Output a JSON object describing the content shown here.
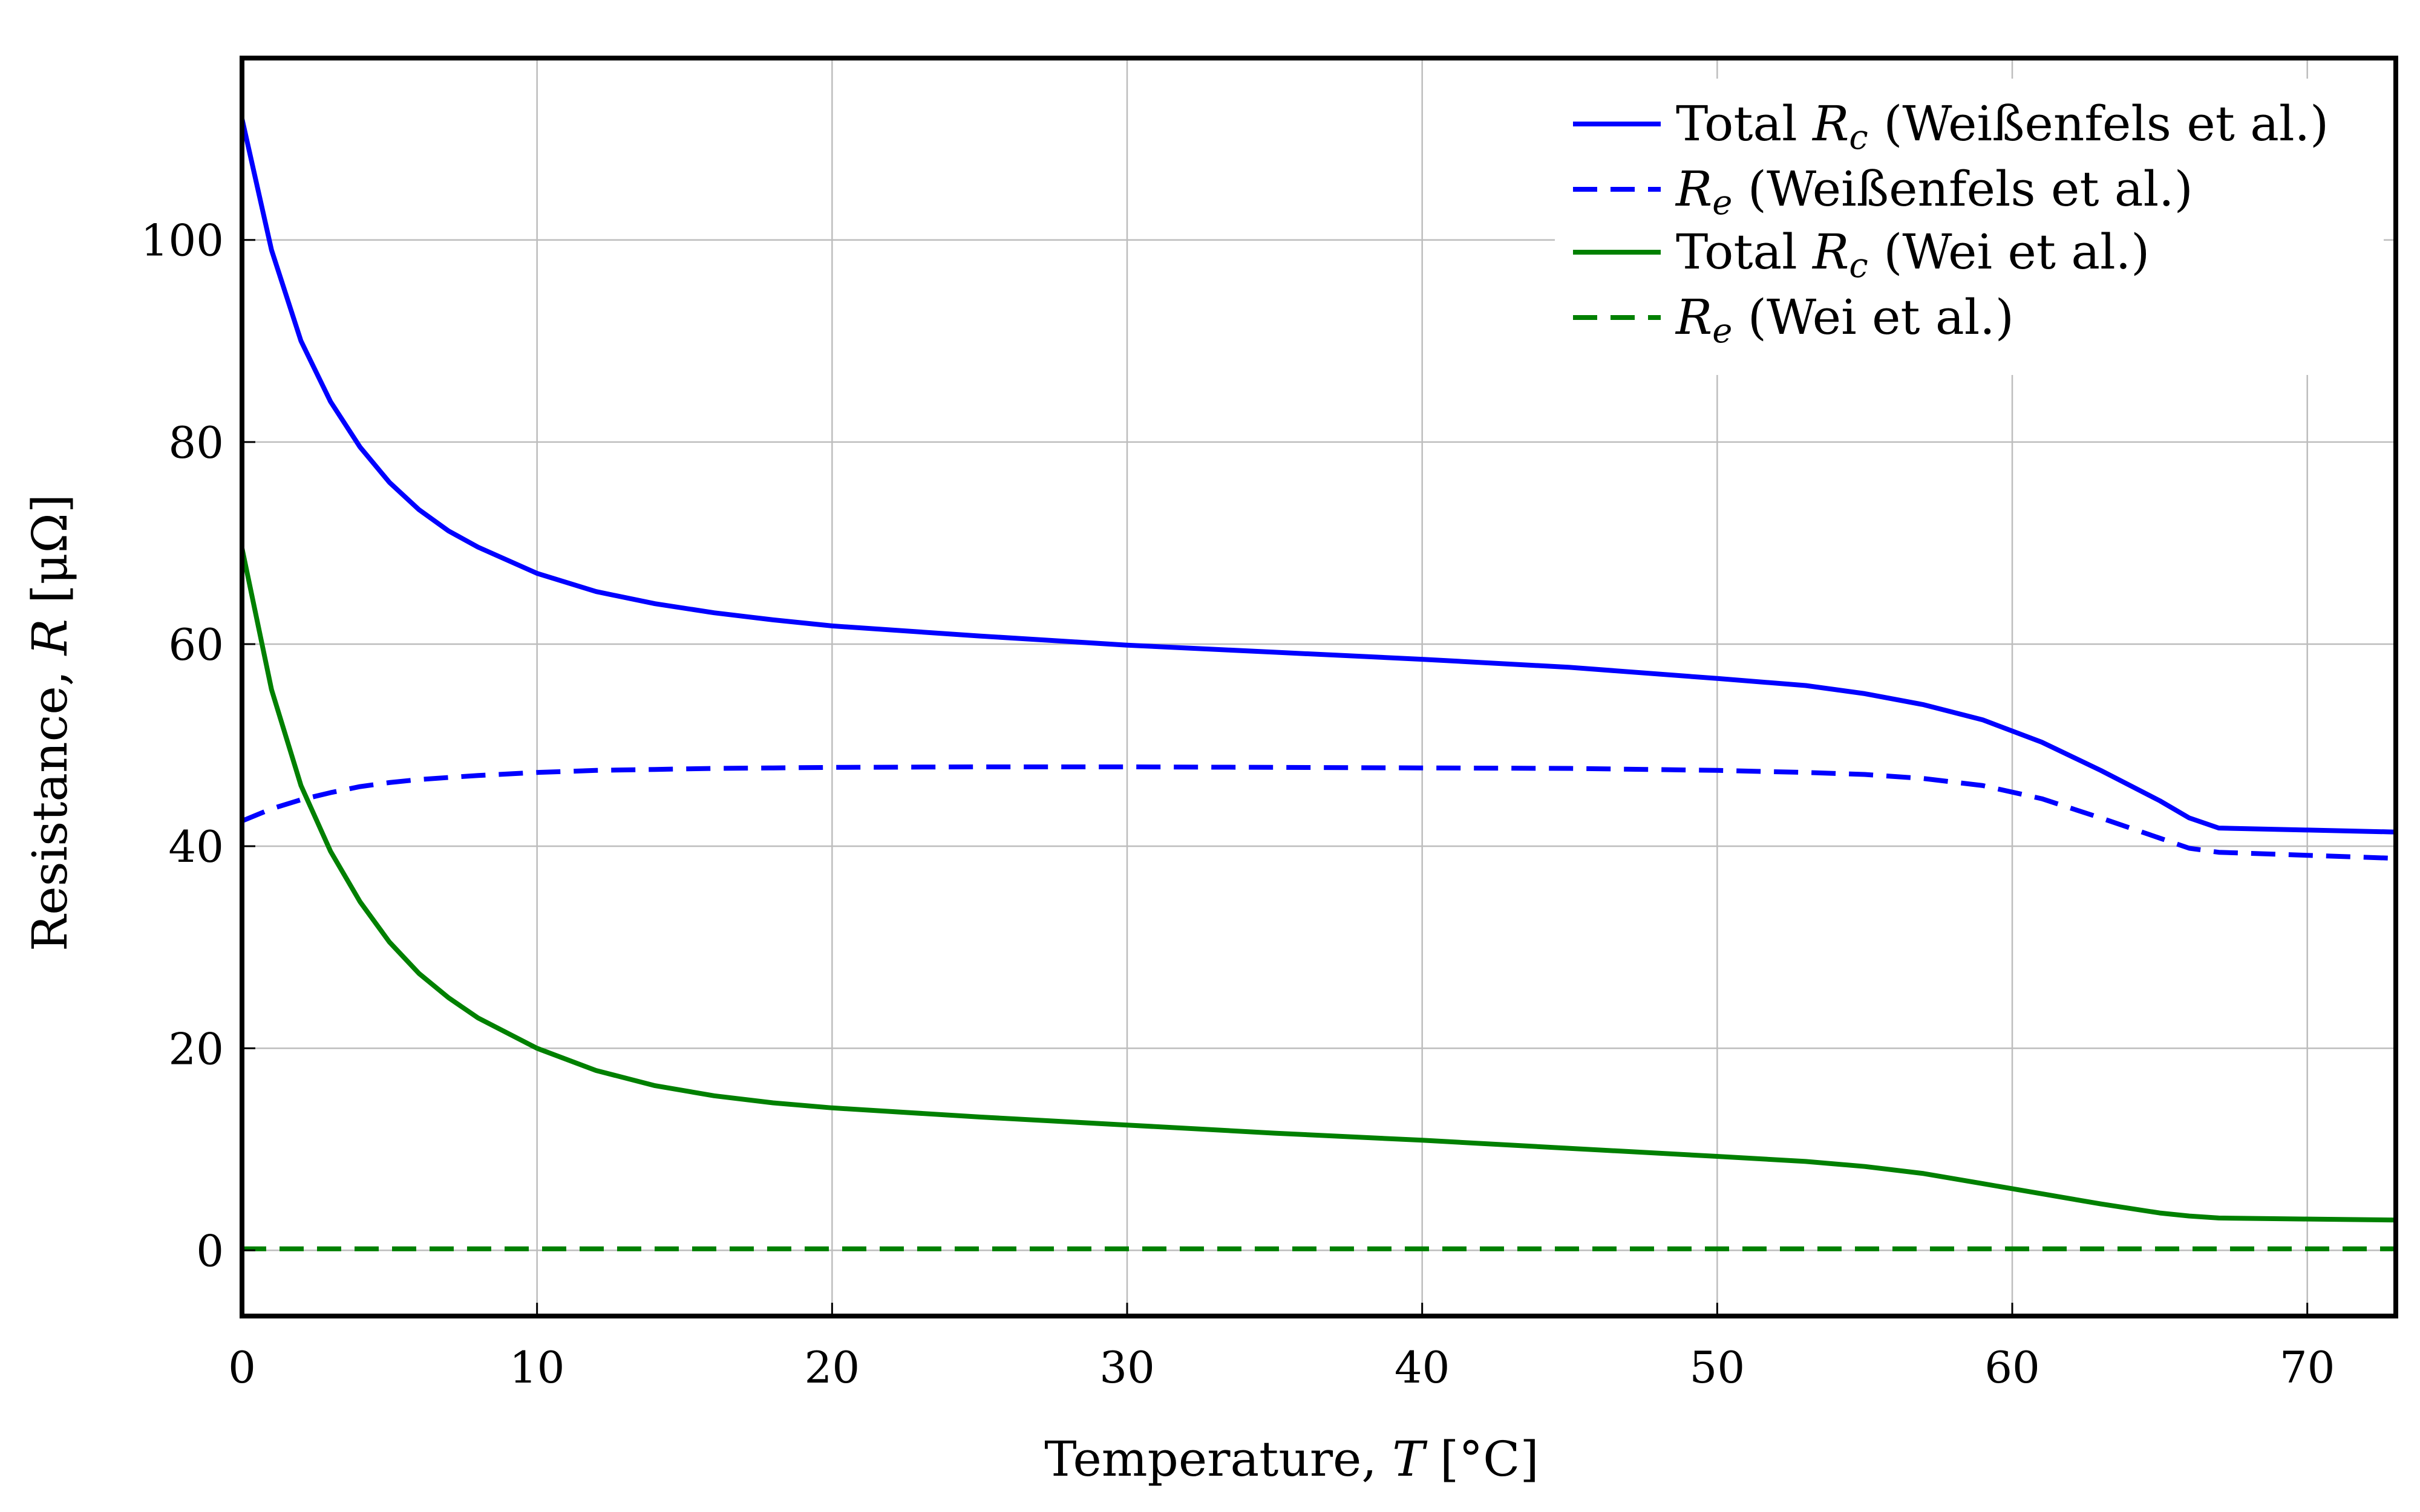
{
  "chart_data": {
    "type": "line",
    "title": "",
    "xlabel": "Temperature, T [°C]",
    "ylabel": "Resistance,  R [μΩ]",
    "xlim": [
      0,
      73
    ],
    "ylim": [
      -6.5,
      118
    ],
    "grid": true,
    "legend_position": "top-right",
    "x_ticks": [
      0,
      10,
      20,
      30,
      40,
      50,
      60,
      70
    ],
    "y_ticks": [
      0,
      20,
      40,
      60,
      80,
      100
    ],
    "x_tick_labels": [
      "0",
      "10",
      "20",
      "30",
      "40",
      "50",
      "60",
      "70"
    ],
    "y_tick_labels": [
      "0",
      "20",
      "40",
      "60",
      "80",
      "100"
    ],
    "x": [
      0,
      1,
      2,
      3,
      4,
      5,
      6,
      7,
      8,
      10,
      12,
      14,
      16,
      18,
      20,
      25,
      30,
      35,
      40,
      45,
      50,
      53,
      55,
      57,
      59,
      61,
      63,
      65,
      66,
      67,
      70,
      73
    ],
    "series": [
      {
        "name": "Total R_c (Weißenfels et al.)",
        "legend": "Total Rc (Weißenfels et al.)",
        "color": "#0000ff",
        "dash": "solid",
        "values": [
          112,
          99,
          90,
          84,
          79.5,
          76,
          73.3,
          71.2,
          69.6,
          67,
          65.2,
          64,
          63.1,
          62.4,
          61.8,
          60.8,
          59.9,
          59.2,
          58.5,
          57.7,
          56.6,
          55.9,
          55.1,
          54,
          52.5,
          50.3,
          47.5,
          44.5,
          42.8,
          41.8,
          41.6,
          41.4
        ]
      },
      {
        "name": "R_e (Weißenfels et al.)",
        "legend": "Re (Weißenfels et al.)",
        "color": "#0000ff",
        "dash": "dashed",
        "values": [
          42.5,
          43.7,
          44.6,
          45.3,
          45.9,
          46.3,
          46.6,
          46.8,
          47,
          47.3,
          47.5,
          47.6,
          47.7,
          47.75,
          47.8,
          47.85,
          47.85,
          47.8,
          47.75,
          47.7,
          47.5,
          47.3,
          47.1,
          46.7,
          46,
          44.7,
          42.8,
          40.8,
          39.8,
          39.4,
          39.1,
          38.8
        ]
      },
      {
        "name": "Total R_c (Wei et al.)",
        "legend": "Total Rc (Wei et al.)",
        "color": "#008000",
        "dash": "solid",
        "values": [
          69.5,
          55.5,
          46,
          39.5,
          34.5,
          30.5,
          27.4,
          25,
          23,
          20,
          17.8,
          16.3,
          15.3,
          14.6,
          14.1,
          13.2,
          12.4,
          11.6,
          10.9,
          10.1,
          9.3,
          8.8,
          8.3,
          7.6,
          6.6,
          5.6,
          4.6,
          3.7,
          3.4,
          3.2,
          3.1,
          3.0
        ]
      },
      {
        "name": "R_e (Wei et al.)",
        "legend": "Re (Wei et al.)",
        "color": "#008000",
        "dash": "dashed",
        "values": [
          0.15,
          0.15,
          0.15,
          0.15,
          0.15,
          0.15,
          0.15,
          0.15,
          0.15,
          0.15,
          0.15,
          0.15,
          0.15,
          0.15,
          0.15,
          0.15,
          0.15,
          0.15,
          0.15,
          0.15,
          0.15,
          0.15,
          0.15,
          0.15,
          0.15,
          0.15,
          0.15,
          0.15,
          0.15,
          0.15,
          0.15,
          0.15
        ]
      }
    ]
  },
  "legend": {
    "items": [
      {
        "prefix": "Total ",
        "symbol": "R",
        "sub": "c",
        "suffix": " (Weißenfels et al.)"
      },
      {
        "prefix": "",
        "symbol": "R",
        "sub": "e",
        "suffix": " (Weißenfels et al.)"
      },
      {
        "prefix": "Total ",
        "symbol": "R",
        "sub": "c",
        "suffix": " (Wei et al.)"
      },
      {
        "prefix": "",
        "symbol": "R",
        "sub": "e",
        "suffix": " (Wei et al.)"
      }
    ]
  },
  "axes": {
    "x_label_text": "Temperature, ",
    "x_label_symbol": "T",
    "x_label_unit": " [°C]",
    "y_label_text": "Resistance,  ",
    "y_label_symbol": "R",
    "y_label_unit": " [μΩ]"
  }
}
